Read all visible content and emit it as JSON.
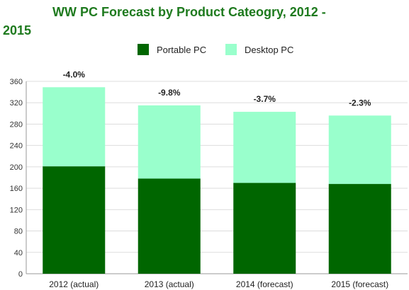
{
  "chart_data": {
    "type": "bar",
    "stacked": true,
    "title_line1": "WW PC Forecast by Product Cateogry, 2012 -",
    "title_line2": "2015",
    "xlabel": "",
    "ylabel": "",
    "categories": [
      "2012 (actual)",
      "2013 (actual)",
      "2014 (forecast)",
      "2015 (forecast)"
    ],
    "series": [
      {
        "name": "Portable PC",
        "color": "#006600",
        "values": [
          201,
          178,
          170,
          168
        ]
      },
      {
        "name": "Desktop PC",
        "color": "#99ffcc",
        "values": [
          148,
          137,
          133,
          128
        ]
      }
    ],
    "annotations": [
      "-4.0%",
      "-9.8%",
      "-3.7%",
      "-2.3%"
    ],
    "ylim": [
      0,
      360
    ],
    "yticks": [
      0,
      40,
      80,
      120,
      160,
      200,
      240,
      280,
      320,
      360
    ],
    "grid": true,
    "legend_position": "top-center"
  },
  "colors": {
    "title": "#1e7a1e",
    "grid": "#dddddd",
    "axis": "#999999"
  }
}
